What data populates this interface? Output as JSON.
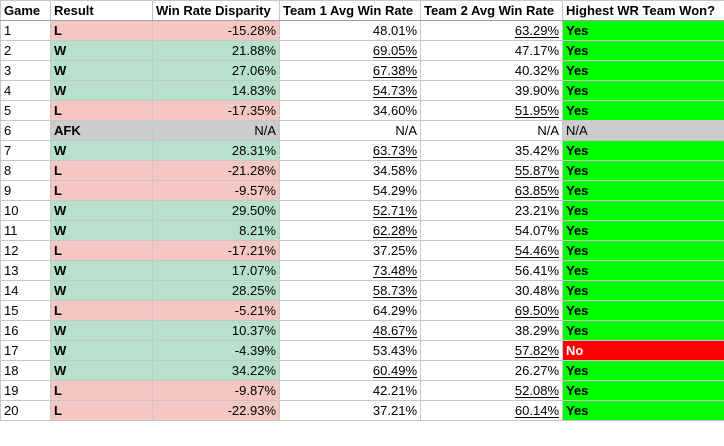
{
  "headers": {
    "game": "Game",
    "result": "Result",
    "disparity": "Win Rate Disparity",
    "team1": "Team 1 Avg Win Rate",
    "team2": "Team 2 Avg Win Rate",
    "won": "Highest WR Team Won?"
  },
  "colors": {
    "win": "#b7e1cd",
    "loss": "#f4c7c3",
    "afk": "#cccccc",
    "yes": "#00ff00",
    "no": "#ff0000"
  },
  "rows": [
    {
      "game": "1",
      "result": "L",
      "disparity": "-15.28%",
      "team1": "48.01%",
      "team2": "63.29%",
      "won": "Yes",
      "u1": false,
      "u2": true
    },
    {
      "game": "2",
      "result": "W",
      "disparity": "21.88%",
      "team1": "69.05%",
      "team2": "47.17%",
      "won": "Yes",
      "u1": true,
      "u2": false
    },
    {
      "game": "3",
      "result": "W",
      "disparity": "27.06%",
      "team1": "67.38%",
      "team2": "40.32%",
      "won": "Yes",
      "u1": true,
      "u2": false
    },
    {
      "game": "4",
      "result": "W",
      "disparity": "14.83%",
      "team1": "54.73%",
      "team2": "39.90%",
      "won": "Yes",
      "u1": true,
      "u2": false
    },
    {
      "game": "5",
      "result": "L",
      "disparity": "-17.35%",
      "team1": "34.60%",
      "team2": "51.95%",
      "won": "Yes",
      "u1": false,
      "u2": true
    },
    {
      "game": "6",
      "result": "AFK",
      "disparity": "N/A",
      "team1": "N/A",
      "team2": "N/A",
      "won": "N/A",
      "u1": false,
      "u2": false
    },
    {
      "game": "7",
      "result": "W",
      "disparity": "28.31%",
      "team1": "63.73%",
      "team2": "35.42%",
      "won": "Yes",
      "u1": true,
      "u2": false
    },
    {
      "game": "8",
      "result": "L",
      "disparity": "-21.28%",
      "team1": "34.58%",
      "team2": "55.87%",
      "won": "Yes",
      "u1": false,
      "u2": true
    },
    {
      "game": "9",
      "result": "L",
      "disparity": "-9.57%",
      "team1": "54.29%",
      "team2": "63.85%",
      "won": "Yes",
      "u1": false,
      "u2": true
    },
    {
      "game": "10",
      "result": "W",
      "disparity": "29.50%",
      "team1": "52.71%",
      "team2": "23.21%",
      "won": "Yes",
      "u1": true,
      "u2": false
    },
    {
      "game": "11",
      "result": "W",
      "disparity": "8.21%",
      "team1": "62.28%",
      "team2": "54.07%",
      "won": "Yes",
      "u1": true,
      "u2": false
    },
    {
      "game": "12",
      "result": "L",
      "disparity": "-17.21%",
      "team1": "37.25%",
      "team2": "54.46%",
      "won": "Yes",
      "u1": false,
      "u2": true
    },
    {
      "game": "13",
      "result": "W",
      "disparity": "17.07%",
      "team1": "73.48%",
      "team2": "56.41%",
      "won": "Yes",
      "u1": true,
      "u2": false
    },
    {
      "game": "14",
      "result": "W",
      "disparity": "28.25%",
      "team1": "58.73%",
      "team2": "30.48%",
      "won": "Yes",
      "u1": true,
      "u2": false
    },
    {
      "game": "15",
      "result": "L",
      "disparity": "-5.21%",
      "team1": "64.29%",
      "team2": "69.50%",
      "won": "Yes",
      "u1": false,
      "u2": true
    },
    {
      "game": "16",
      "result": "W",
      "disparity": "10.37%",
      "team1": "48.67%",
      "team2": "38.29%",
      "won": "Yes",
      "u1": true,
      "u2": false
    },
    {
      "game": "17",
      "result": "W",
      "disparity": "-4.39%",
      "team1": "53.43%",
      "team2": "57.82%",
      "won": "No",
      "u1": false,
      "u2": true
    },
    {
      "game": "18",
      "result": "W",
      "disparity": "34.22%",
      "team1": "60.49%",
      "team2": "26.27%",
      "won": "Yes",
      "u1": true,
      "u2": false
    },
    {
      "game": "19",
      "result": "L",
      "disparity": "-9.87%",
      "team1": "42.21%",
      "team2": "52.08%",
      "won": "Yes",
      "u1": false,
      "u2": true
    },
    {
      "game": "20",
      "result": "L",
      "disparity": "-22.93%",
      "team1": "37.21%",
      "team2": "60.14%",
      "won": "Yes",
      "u1": false,
      "u2": true
    }
  ]
}
